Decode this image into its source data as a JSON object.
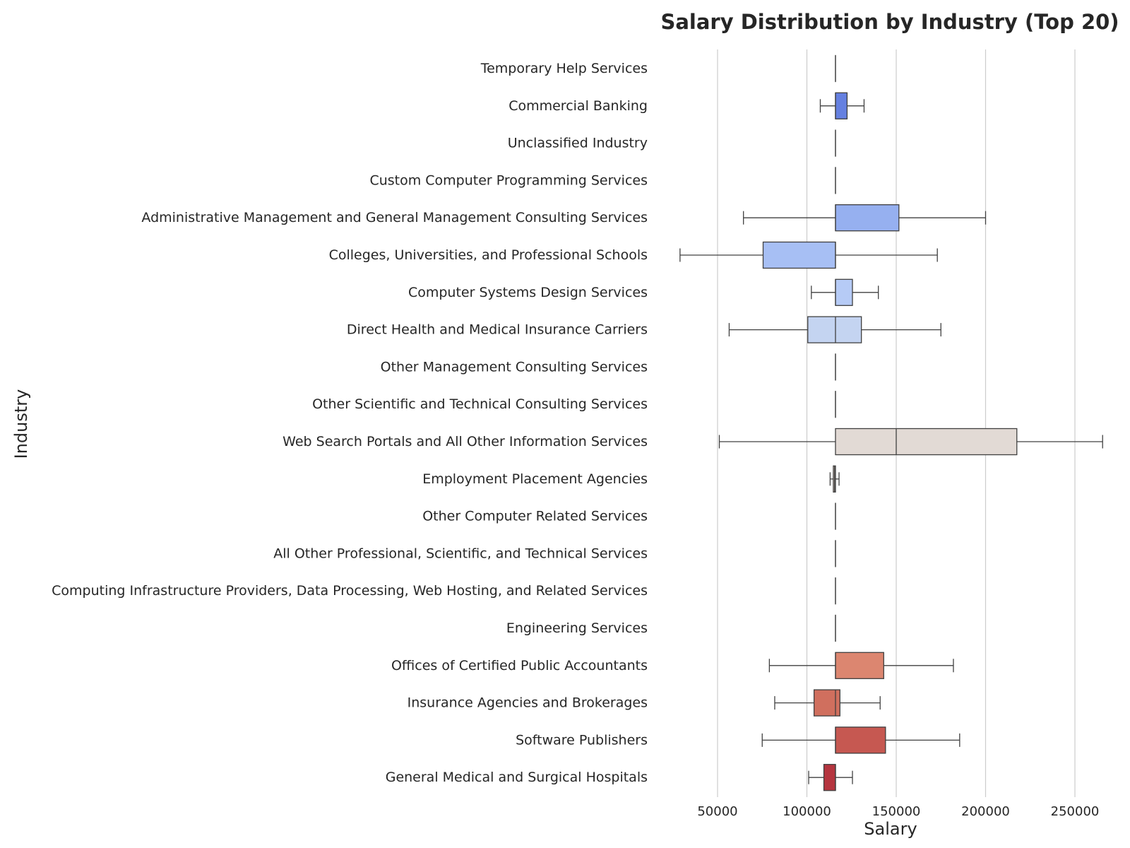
{
  "chart_data": {
    "type": "box",
    "orientation": "horizontal",
    "title": "Salary Distribution by Industry (Top 20)",
    "xlabel": "Salary",
    "ylabel": "Industry",
    "xlim": [
      28000,
      270000
    ],
    "xticks": [
      50000,
      100000,
      150000,
      200000,
      250000
    ],
    "xtick_labels": [
      "50000",
      "100000",
      "150000",
      "200000",
      "250000"
    ],
    "grid": "vertical",
    "categories": [
      "Temporary Help Services",
      "Commercial Banking",
      "Unclassified Industry",
      "Custom Computer Programming Services",
      "Administrative Management and General Management Consulting Services",
      "Colleges, Universities, and Professional Schools",
      "Computer Systems Design Services",
      "Direct Health and Medical Insurance Carriers",
      "Other Management Consulting Services",
      "Other Scientific and Technical Consulting Services",
      "Web Search Portals and All Other Information Services",
      "Employment Placement Agencies",
      "Other Computer Related Services",
      "All Other Professional, Scientific, and Technical Services",
      "Computing Infrastructure Providers, Data Processing, Web Hosting, and Related Services",
      "Engineering Services",
      "Offices of Certified Public Accountants",
      "Insurance Agencies and Brokerages",
      "Software Publishers",
      "General Medical and Surgical Hospitals"
    ],
    "boxes": [
      {
        "min": 116000,
        "q1": 116000,
        "median": 116000,
        "q3": 116000,
        "max": 116000,
        "color": "#5a74d8"
      },
      {
        "min": 107500,
        "q1": 116000,
        "median": 116000,
        "q3": 122500,
        "max": 132000,
        "color": "#6580e0"
      },
      {
        "min": 116000,
        "q1": 116000,
        "median": 116000,
        "q3": 116000,
        "max": 116000,
        "color": "#728ee8"
      },
      {
        "min": 116000,
        "q1": 116000,
        "median": 116000,
        "q3": 116000,
        "max": 116000,
        "color": "#819cef"
      },
      {
        "min": 64500,
        "q1": 116000,
        "median": 116000,
        "q3": 151500,
        "max": 200000,
        "color": "#96b0f0"
      },
      {
        "min": 29000,
        "q1": 75500,
        "median": 116000,
        "q3": 116000,
        "max": 173000,
        "color": "#a7bff4"
      },
      {
        "min": 102500,
        "q1": 116000,
        "median": 116000,
        "q3": 125500,
        "max": 140000,
        "color": "#b6cbf6"
      },
      {
        "min": 56500,
        "q1": 100500,
        "median": 116000,
        "q3": 130500,
        "max": 175000,
        "color": "#c4d4f1"
      },
      {
        "min": 116000,
        "q1": 116000,
        "median": 116000,
        "q3": 116000,
        "max": 116000,
        "color": "#d0dae9"
      },
      {
        "min": 116000,
        "q1": 116000,
        "median": 116000,
        "q3": 116000,
        "max": 116000,
        "color": "#dcdde3"
      },
      {
        "min": 51000,
        "q1": 116000,
        "median": 150000,
        "q3": 217500,
        "max": 265500,
        "color": "#e2dad5"
      },
      {
        "min": 113000,
        "q1": 114800,
        "median": 115500,
        "q3": 116000,
        "max": 118000,
        "color": "#e6cfc3"
      },
      {
        "min": 116000,
        "q1": 116000,
        "median": 116000,
        "q3": 116000,
        "max": 116000,
        "color": "#ebbfaa"
      },
      {
        "min": 116000,
        "q1": 116000,
        "median": 116000,
        "q3": 116000,
        "max": 116000,
        "color": "#eeaf94"
      },
      {
        "min": 116000,
        "q1": 116000,
        "median": 116000,
        "q3": 116000,
        "max": 116000,
        "color": "#ec9c7e"
      },
      {
        "min": 116000,
        "q1": 116000,
        "median": 116000,
        "q3": 116000,
        "max": 116000,
        "color": "#e58b6c"
      },
      {
        "min": 79000,
        "q1": 116000,
        "median": 116000,
        "q3": 143000,
        "max": 182000,
        "color": "#dc8670"
      },
      {
        "min": 82000,
        "q1": 104000,
        "median": 116000,
        "q3": 118500,
        "max": 141000,
        "color": "#d06f5e"
      },
      {
        "min": 75000,
        "q1": 116000,
        "median": 116000,
        "q3": 144000,
        "max": 185500,
        "color": "#c65851"
      },
      {
        "min": 101000,
        "q1": 109500,
        "median": 116000,
        "q3": 116000,
        "max": 125500,
        "color": "#b5353f"
      }
    ]
  }
}
